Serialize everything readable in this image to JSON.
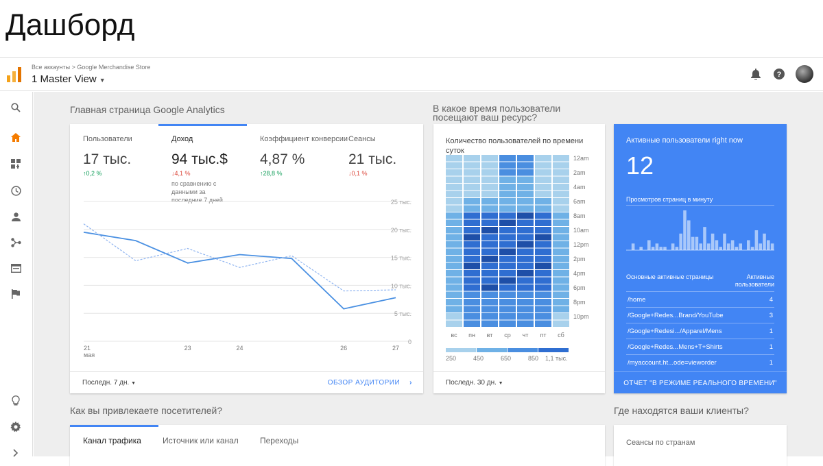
{
  "slide_title": "Дашборд",
  "header": {
    "breadcrumb_root": "Все аккаунты",
    "breadcrumb_sep": ">",
    "breadcrumb_property": "Google Merchandise Store",
    "view": "1 Master View"
  },
  "colors": {
    "accent": "#4285f4",
    "logo": "#f4a21a",
    "up": "#0f9d58",
    "down": "#db4437"
  },
  "sidebar": {
    "icons": [
      "search-icon",
      "home-icon",
      "dashboard-icon",
      "clock-icon",
      "person-icon",
      "acquisition-icon",
      "behavior-icon",
      "flag-icon",
      "lightbulb-icon",
      "gear-icon",
      "chevron-right-icon"
    ]
  },
  "home": {
    "section_title": "Главная страница Google Analytics",
    "metrics": [
      {
        "label": "Пользователи",
        "value": "17 тыс.",
        "change": "↑0,2 %",
        "dir": "up"
      },
      {
        "label": "Доход",
        "value": "94 тыс.$",
        "change": "↓4,1 %",
        "dir": "down"
      },
      {
        "label": "Коэффициент конверсии",
        "value": "4,87 %",
        "change": "↑28,8 %",
        "dir": "up"
      },
      {
        "label": "Сеансы",
        "value": "21 тыс.",
        "change": "↓0,1 %",
        "dir": "down"
      }
    ],
    "compare_text": "по сравнению с данными за последние 7 дней",
    "footer_range": "Последн. 7 дн.",
    "footer_link": "ОБЗОР АУДИТОРИИ"
  },
  "chart_data": {
    "type": "line",
    "x": [
      21,
      22,
      23,
      24,
      25,
      26,
      27
    ],
    "x_tick_labels": [
      "21",
      "23",
      "24",
      "26",
      "27"
    ],
    "x_tick_values": [
      21,
      23,
      24,
      26,
      27
    ],
    "x_sub_label": "мая",
    "y_tick_labels": [
      "25 тыс.",
      "20 тыс.",
      "15 тыс.",
      "10 тыс.",
      "5 тыс.",
      "0"
    ],
    "y_tick_values": [
      25000,
      20000,
      15000,
      10000,
      5000,
      0
    ],
    "ylim": [
      0,
      25000
    ],
    "series": [
      {
        "style": "solid",
        "values": [
          19500,
          18000,
          14000,
          15500,
          14800,
          5800,
          7800
        ]
      },
      {
        "style": "dashed",
        "values": [
          21000,
          14400,
          16600,
          13200,
          15300,
          9000,
          9200
        ]
      }
    ]
  },
  "heatmap": {
    "section_title": "В какое время пользователи посещают ваш ресурс?",
    "title": "Количество пользователей по времени суток",
    "days": [
      "вс",
      "пн",
      "вт",
      "ср",
      "чт",
      "пт",
      "сб"
    ],
    "hours": [
      "12am",
      "2am",
      "4am",
      "6am",
      "8am",
      "10am",
      "12pm",
      "2pm",
      "4pm",
      "6pm",
      "8pm",
      "10pm"
    ],
    "legend": [
      "250",
      "450",
      "650",
      "850",
      "1,1 тыс."
    ],
    "footer_range": "Последн. 30 дн.",
    "colors": [
      "#a8d1ec",
      "#6fb1e6",
      "#4a8ee0",
      "#2f6ed1",
      "#1e4fa8"
    ]
  },
  "active": {
    "title": "Активные пользователи right now",
    "count": "12",
    "subtitle": "Просмотров страниц в минуту",
    "col_pages": "Основные активные страницы",
    "col_users": "Активные пользователи",
    "bars": [
      0,
      2,
      0,
      1,
      0,
      3,
      1,
      2,
      1,
      1,
      0,
      2,
      1,
      5,
      12,
      9,
      4,
      4,
      2,
      7,
      2,
      5,
      3,
      1,
      5,
      2,
      3,
      1,
      2,
      0,
      3,
      1,
      6,
      2,
      5,
      3,
      2
    ],
    "rows": [
      {
        "page": "/home",
        "users": "4"
      },
      {
        "page": "/Google+Redes...Brand/YouTube",
        "users": "3"
      },
      {
        "page": "/Google+Redesi.../Apparel/Mens",
        "users": "1"
      },
      {
        "page": "/Google+Redes...Mens+T+Shirts",
        "users": "1"
      },
      {
        "page": "/myaccount.ht...ode=vieworder",
        "users": "1"
      }
    ],
    "footer": "ОТЧЕТ \"В РЕЖИМЕ РЕАЛЬНОГО ВРЕМЕНИ\""
  },
  "acquisition": {
    "section_title": "Как вы привлекаете посетителей?",
    "tabs": [
      "Канал трафика",
      "Источник или канал",
      "Переходы"
    ]
  },
  "geo": {
    "section_title": "Где находятся ваши клиенты?",
    "card_title": "Сеансы по странам"
  }
}
